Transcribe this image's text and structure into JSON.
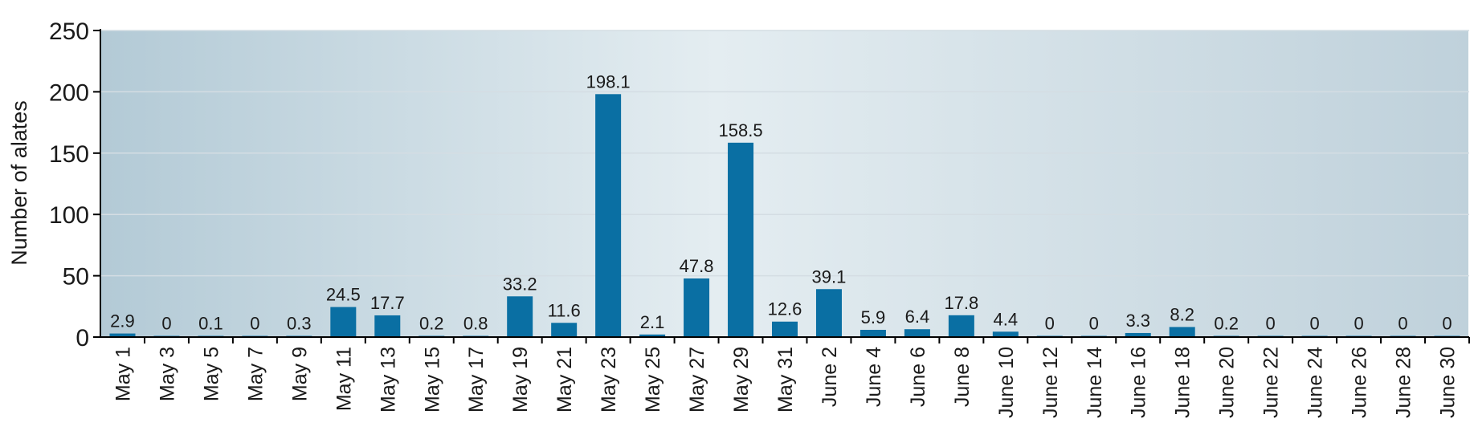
{
  "chart_data": {
    "type": "bar",
    "title": "",
    "xlabel": "",
    "ylabel": "Number of alates",
    "ylim": [
      0,
      250
    ],
    "yticks": [
      0,
      50,
      100,
      150,
      200,
      250
    ],
    "grid": true,
    "categories": [
      "May 1",
      "May 3",
      "May 5",
      "May 7",
      "May 9",
      "May 11",
      "May 13",
      "May 15",
      "May 17",
      "May 19",
      "May 21",
      "May 23",
      "May 25",
      "May 27",
      "May 29",
      "May 31",
      "June 2",
      "June 4",
      "June 6",
      "June 8",
      "June 10",
      "June 12",
      "June 14",
      "June 16",
      "June 18",
      "June 20",
      "June 22",
      "June 24",
      "June 26",
      "June 28",
      "June 30"
    ],
    "values": [
      2.9,
      0,
      0.1,
      0,
      0.3,
      24.5,
      17.7,
      0.2,
      0.8,
      33.2,
      11.6,
      198.1,
      2.1,
      47.8,
      158.5,
      12.6,
      39.1,
      5.9,
      6.4,
      17.8,
      4.4,
      0,
      0,
      3.3,
      8.2,
      0.2,
      0,
      0,
      0,
      0,
      0
    ],
    "value_labels": [
      "2.9",
      "0",
      "0.1",
      "0",
      "0.3",
      "24.5",
      "17.7",
      "0.2",
      "0.8",
      "33.2",
      "11.6",
      "198.1",
      "2.1",
      "47.8",
      "158.5",
      "12.6",
      "39.1",
      "5.9",
      "6.4",
      "17.8",
      "4.4",
      "0",
      "0",
      "3.3",
      "8.2",
      "0.2",
      "0",
      "0",
      "0",
      "0",
      "0"
    ],
    "colors": {
      "bar": "#0a6fa3",
      "bg_left": "#b3cad6",
      "bg_mid": "#e4edf1",
      "bg_right": "#bfd1db",
      "grid": "#d4dde3",
      "axis": "#000000"
    }
  }
}
